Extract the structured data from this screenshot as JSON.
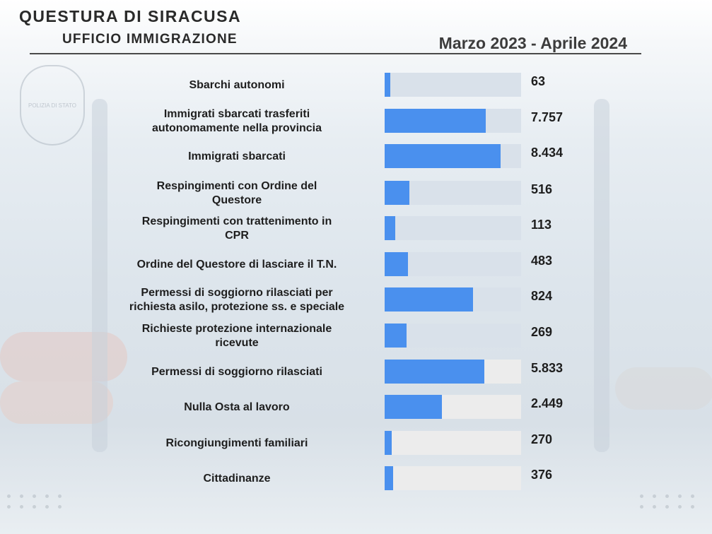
{
  "header": {
    "title": "QUESTURA DI SIRACUSA",
    "subtitle": "UFFICIO IMMIGRAZIONE",
    "period": "Marzo 2023 - Aprile 2024"
  },
  "seal": {
    "text": "POLIZIA DI STATO"
  },
  "colors": {
    "bar_fill": "#4a90ee",
    "track_blue": "#d9e1ea",
    "track_light": "#ececec",
    "text": "#1e1e1e"
  },
  "chart_data": {
    "type": "bar",
    "orientation": "horizontal",
    "title": "",
    "xlabel": "",
    "ylabel": "",
    "categories": [
      [
        "Sbarchi autonomi"
      ],
      [
        "Immigrati sbarcati trasferiti",
        "autonomamente nella provincia"
      ],
      [
        "Immigrati sbarcati"
      ],
      [
        "Respingimenti  con Ordine del",
        "Questore"
      ],
      [
        "Respingimenti con trattenimento in",
        "CPR"
      ],
      [
        "Ordine del Questore di lasciare il T.N."
      ],
      [
        "Permessi di soggiorno rilasciati per",
        "richiesta asilo, protezione ss. e speciale"
      ],
      [
        "Richieste protezione internazionale",
        "ricevute"
      ],
      [
        "Permessi di soggiorno rilasciati"
      ],
      [
        "Nulla Osta al lavoro"
      ],
      [
        "Ricongiungimenti familiari"
      ],
      [
        "Cittadinanze"
      ]
    ],
    "values": [
      63,
      7757,
      8434,
      516,
      113,
      483,
      824,
      269,
      5833,
      2449,
      270,
      376
    ],
    "value_labels": [
      "63",
      "7.757",
      "8.434",
      "516",
      "113",
      "483",
      "824",
      "269",
      "5.833",
      "2.449",
      "270",
      "376"
    ],
    "bar_fill_fraction": [
      0.04,
      0.74,
      0.85,
      0.18,
      0.08,
      0.17,
      0.65,
      0.16,
      0.73,
      0.42,
      0.05,
      0.06
    ],
    "track_style": [
      "blue",
      "blue",
      "blue",
      "blue",
      "blue",
      "blue",
      "blue",
      "blue",
      "light",
      "light",
      "light",
      "light"
    ],
    "grid": false,
    "legend": "none"
  }
}
